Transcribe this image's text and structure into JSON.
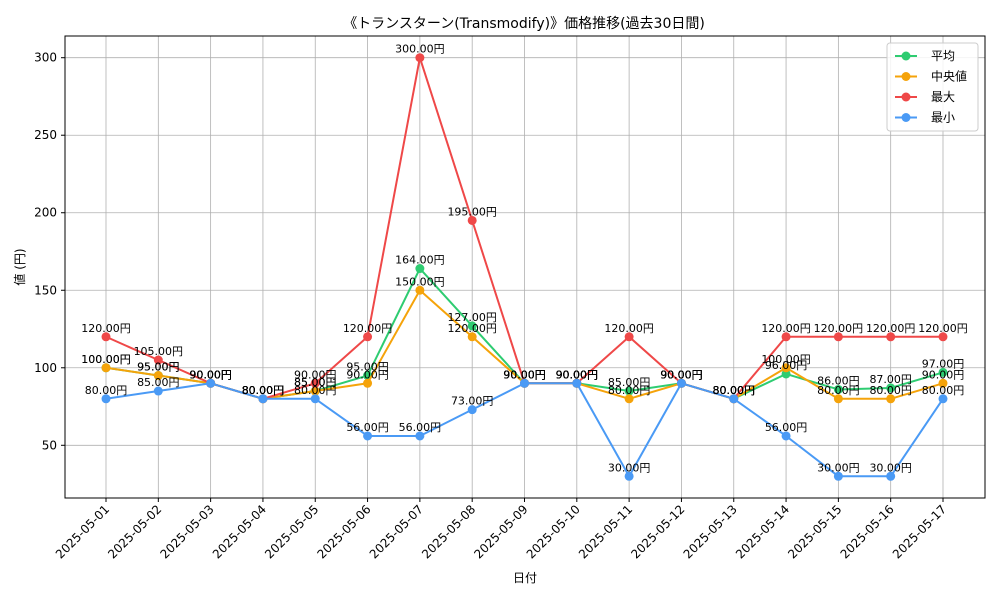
{
  "chart_data": {
    "type": "line",
    "title": "《トランスターン(Transmodify)》価格推移(過去30日間)",
    "xlabel": "日付",
    "ylabel": "値 (円)",
    "categories": [
      "2025-05-01",
      "2025-05-02",
      "2025-05-03",
      "2025-05-04",
      "2025-05-05",
      "2025-05-06",
      "2025-05-07",
      "2025-05-08",
      "2025-05-09",
      "2025-05-10",
      "2025-05-11",
      "2025-05-12",
      "2025-05-13",
      "2025-05-14",
      "2025-05-15",
      "2025-05-16",
      "2025-05-17"
    ],
    "ylim": [
      16,
      314
    ],
    "yticks": [
      50,
      100,
      150,
      200,
      250,
      300
    ],
    "grid": true,
    "legend_position": "top-right",
    "value_suffix": "円",
    "series": [
      {
        "name": "平均",
        "color": "#2ecc71",
        "values": [
          100,
          95,
          90,
          80,
          85,
          95,
          164,
          127,
          90,
          90,
          85,
          90,
          80,
          96,
          86,
          87,
          97
        ]
      },
      {
        "name": "中央値",
        "color": "#f5a30a",
        "values": [
          100,
          95,
          90,
          80,
          85,
          90,
          150,
          120,
          90,
          90,
          80,
          90,
          80,
          100,
          80,
          80,
          90
        ]
      },
      {
        "name": "最大",
        "color": "#ef4848",
        "values": [
          120,
          105,
          90,
          80,
          90,
          120,
          300,
          195,
          90,
          90,
          120,
          90,
          80,
          120,
          120,
          120,
          120
        ]
      },
      {
        "name": "最小",
        "color": "#4a9af5",
        "values": [
          80,
          85,
          90,
          80,
          80,
          56,
          56,
          73,
          90,
          90,
          30,
          90,
          80,
          56,
          30,
          30,
          80
        ]
      }
    ]
  }
}
